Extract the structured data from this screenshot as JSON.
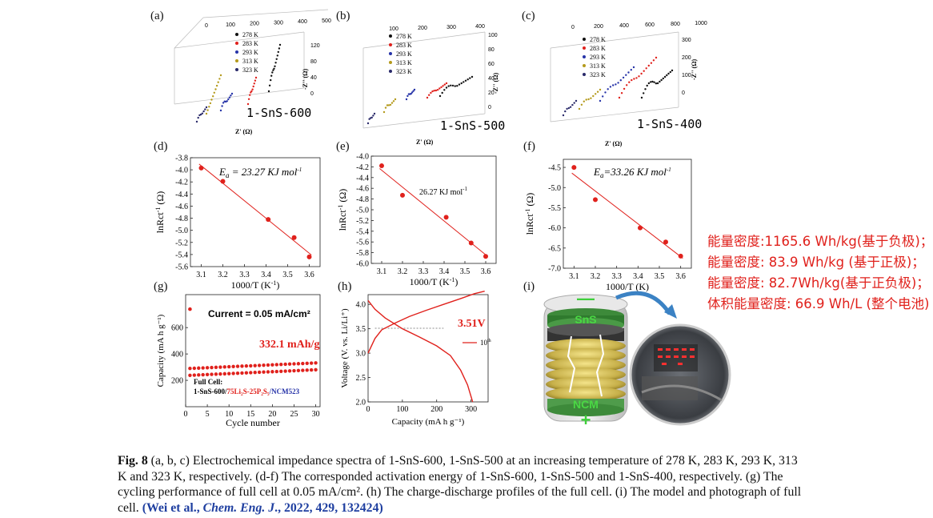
{
  "panels": {
    "a": {
      "label": "(a)",
      "sample": "1-SnS-600",
      "xlabel": "Z' (Ω)",
      "zlabel": "-Z'' (Ω)",
      "xticks": [
        "0",
        "100",
        "200",
        "300",
        "400",
        "500"
      ],
      "zticks": [
        "120",
        "80",
        "40",
        "0"
      ]
    },
    "b": {
      "label": "(b)",
      "sample": "1-SnS-500",
      "xlabel": "Z' (Ω)",
      "zlabel": "-Z'' (Ω)",
      "xticks": [
        "100",
        "200",
        "300",
        "400"
      ],
      "zticks": [
        "100",
        "80",
        "60",
        "40",
        "20",
        "0"
      ]
    },
    "c": {
      "label": "(c)",
      "sample": "1-SnS-400",
      "xlabel": "Z' (Ω)",
      "zlabel": "-Z'' (Ω)",
      "xticks": [
        "0",
        "200",
        "400",
        "600",
        "800",
        "1000"
      ],
      "zticks": [
        "300",
        "200",
        "100",
        "0"
      ]
    },
    "d": {
      "label": "(d)",
      "annotation_prefix": "E",
      "annotation_sub": "a",
      "annotation_rest": " = 23.27 KJ mol",
      "annotation_sup": "-1",
      "xlabel": "1000/T (K",
      "xlabel_sup": "-1",
      "xlabel_end": ")",
      "ylabel": "lnRct",
      "ylabel_sup": "-1",
      "ylabel_end": " (Ω)"
    },
    "e": {
      "label": "(e)",
      "annotation": "26.27 KJ mol",
      "annotation_sup": "-1",
      "xlabel": "1000/T (K",
      "xlabel_sup": "-1",
      "xlabel_end": ")",
      "ylabel": "lnRct",
      "ylabel_sup": "-1",
      "ylabel_end": " (Ω)"
    },
    "f": {
      "label": "(f)",
      "annotation_prefix": "E",
      "annotation_sub": "a",
      "annotation_rest": "=33.26 KJ mol",
      "annotation_sup": "-1",
      "xlabel": "1000/T (K)",
      "ylabel": "lnRct",
      "ylabel_sup": "-1",
      "ylabel_end": " (Ω)"
    },
    "g": {
      "label": "(g)",
      "current": "Current = 0.05 mA/cm²",
      "capacity_label": "332.1  mAh/g",
      "legend_title": "Full Cell:",
      "legend_cell_a": "1-SnS-600/",
      "legend_cell_b": "75Li₂S-25P₂S₅",
      "legend_cell_c": "/NCM523",
      "xlabel": "Cycle number",
      "ylabel": "Capacity (mA h g⁻¹)"
    },
    "h": {
      "label": "(h)",
      "voltage_label": "3.51V",
      "legend": "10",
      "legend_sup": "th",
      "xlabel": "Capacity (mA h g⁻¹)",
      "ylabel": "Voltage (V. vs. Li/Li⁺)"
    },
    "i": {
      "label": "(i)",
      "top_sign": "—",
      "bottom_sign": "+",
      "anode": "SnS",
      "cathode": "NCM"
    }
  },
  "legend_temps": [
    "278 K",
    "283 K",
    "293 K",
    "313 K",
    "323 K"
  ],
  "temp_colors": [
    "#111111",
    "#e0211c",
    "#2633a8",
    "#b49a1c",
    "#2a2a6a"
  ],
  "chart_data": [
    {
      "type": "scatter",
      "panel": "d",
      "x": [
        3.1,
        3.2,
        3.41,
        3.53,
        3.6
      ],
      "y": [
        -3.97,
        -4.19,
        -4.82,
        -5.12,
        -5.44
      ],
      "xticks": [
        3.1,
        3.2,
        3.3,
        3.4,
        3.5,
        3.6
      ],
      "xlim": [
        3.05,
        3.65
      ],
      "ylim": [
        -5.6,
        -3.8
      ],
      "yticks": [
        -3.8,
        -4.0,
        -4.2,
        -4.4,
        -4.6,
        -4.8,
        -5.0,
        -5.2,
        -5.4,
        -5.6
      ]
    },
    {
      "type": "scatter",
      "panel": "e",
      "x": [
        3.1,
        3.2,
        3.41,
        3.53,
        3.6
      ],
      "y": [
        -4.18,
        -4.73,
        -5.14,
        -5.62,
        -5.87
      ],
      "xticks": [
        3.1,
        3.2,
        3.3,
        3.4,
        3.5,
        3.6
      ],
      "xlim": [
        3.05,
        3.65
      ],
      "ylim": [
        -6.0,
        -4.0
      ],
      "yticks": [
        -4.0,
        -4.2,
        -4.4,
        -4.6,
        -4.8,
        -5.0,
        -5.2,
        -5.4,
        -5.6,
        -5.8,
        -6.0
      ]
    },
    {
      "type": "scatter",
      "panel": "f",
      "x": [
        3.1,
        3.2,
        3.41,
        3.53,
        3.6
      ],
      "y": [
        -4.5,
        -5.3,
        -6.0,
        -6.35,
        -6.7
      ],
      "xticks": [
        3.1,
        3.2,
        3.3,
        3.4,
        3.5,
        3.6
      ],
      "xlim": [
        3.05,
        3.65
      ],
      "ylim": [
        -7.0,
        -4.3
      ],
      "yticks": [
        -4.5,
        -5.0,
        -5.5,
        -6.0,
        -6.5,
        -7.0
      ]
    },
    {
      "type": "scatter",
      "panel": "g",
      "first_point": [
        1,
        740
      ],
      "cycle_start": 290,
      "cycle_end": 332.1,
      "xticks": [
        0,
        5,
        10,
        15,
        20,
        25,
        30
      ],
      "xlim": [
        0,
        31
      ],
      "ylim": [
        0,
        850
      ],
      "yticks": [
        200,
        400,
        600
      ]
    },
    {
      "type": "line",
      "panel": "h",
      "series": [
        {
          "name": "charge",
          "x": [
            0,
            20,
            40,
            80,
            120,
            170,
            220,
            270,
            310,
            340
          ],
          "y": [
            3.0,
            3.3,
            3.48,
            3.62,
            3.75,
            3.88,
            4.0,
            4.12,
            4.22,
            4.27
          ]
        },
        {
          "name": "discharge",
          "x": [
            0,
            20,
            50,
            100,
            150,
            200,
            240,
            270,
            290,
            305
          ],
          "y": [
            4.08,
            3.9,
            3.72,
            3.5,
            3.33,
            3.15,
            2.95,
            2.65,
            2.35,
            2.0
          ]
        }
      ],
      "xticks": [
        0,
        100,
        200,
        300
      ],
      "xlim": [
        0,
        350
      ],
      "ylim": [
        2.0,
        4.2
      ],
      "yticks": [
        2.0,
        2.5,
        3.0,
        3.5,
        4.0
      ],
      "ref_line": 3.51
    }
  ],
  "notes": [
    "能量密度:1165.6 Wh/kg(基于负极)；",
    "能量密度: 83.9 Wh/kg (基于正极)；",
    "能量密度: 82.7Wh/kg(基于正负极)；",
    "体积能量密度: 66.9 Wh/L (整个电池)"
  ],
  "caption": {
    "fig": "Fig. 8",
    "body": " (a, b, c) Electrochemical impedance spectra of 1-SnS-600, 1-SnS-500 at an increasing temperature of 278 K, 283 K, 293 K, 313 K and 323 K, respectively. (d-f) The corresponded activation energy of 1-SnS-600, 1-SnS-500 and 1-SnS-400, respectively. (g) The cycling performance of full cell at 0.05 mA/cm². (h) The charge-discharge profiles of the full cell. (i) The model and photograph of full cell. ",
    "ref_authors": "(Wei et al., ",
    "ref_journal": "Chem. Eng. J",
    "ref_tail": "., 2022, 429, 132424)"
  }
}
